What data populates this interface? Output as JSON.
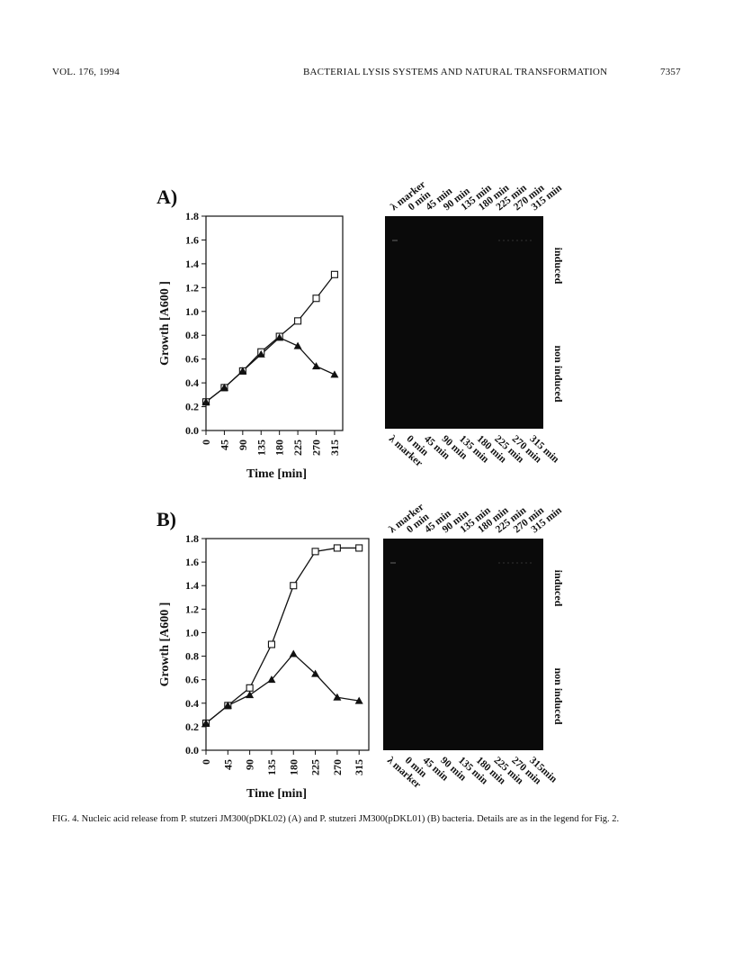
{
  "header": {
    "left": "VOL. 176, 1994",
    "center": "BACTERIAL LYSIS SYSTEMS AND NATURAL TRANSFORMATION",
    "right": "7357"
  },
  "chart_data": [
    {
      "type": "line",
      "panel": "A)",
      "y_label": "Growth [A600 ]",
      "x_label": "Time [min]",
      "x": [
        0,
        45,
        90,
        135,
        180,
        225,
        270,
        315
      ],
      "series": [
        {
          "marker": "square",
          "color": "#111111",
          "values": [
            0.24,
            0.36,
            0.5,
            0.66,
            0.79,
            0.92,
            1.11,
            1.31
          ]
        },
        {
          "marker": "triangle",
          "color": "#111111",
          "values": [
            0.24,
            0.36,
            0.5,
            0.64,
            0.78,
            0.71,
            0.54,
            0.47
          ]
        }
      ],
      "xlim": [
        0,
        335
      ],
      "xticks": [
        0,
        45,
        90,
        135,
        180,
        225,
        270,
        315
      ],
      "ylim": [
        0,
        1.8
      ],
      "yticks": [
        {
          "value": 0,
          "label": "0.0"
        },
        0.2,
        0.4,
        0.6,
        0.8,
        {
          "value": 1,
          "label": "1.0"
        },
        1.2,
        1.4,
        1.6,
        1.8
      ]
    },
    {
      "type": "line",
      "panel": "B)",
      "y_label": "Growth [A600 ]",
      "x_label": "Time [min]",
      "x": [
        0,
        45,
        90,
        135,
        180,
        225,
        270,
        315
      ],
      "series": [
        {
          "marker": "square",
          "color": "#111111",
          "values": [
            0.23,
            0.38,
            0.53,
            0.9,
            1.4,
            1.69,
            1.72,
            1.72
          ]
        },
        {
          "marker": "triangle",
          "color": "#111111",
          "values": [
            0.23,
            0.38,
            0.47,
            0.6,
            0.82,
            0.65,
            0.45,
            0.42
          ]
        }
      ],
      "xlim": [
        0,
        335
      ],
      "xticks": [
        0,
        45,
        90,
        135,
        180,
        225,
        270,
        315
      ],
      "ylim": [
        0,
        1.8
      ],
      "yticks": [
        {
          "value": 0,
          "label": "0.0"
        },
        0.2,
        0.4,
        0.6,
        0.8,
        {
          "value": 1,
          "label": "1.0"
        },
        1.2,
        1.4,
        1.6,
        1.8
      ]
    }
  ],
  "gels": [
    {
      "top_lanes": [
        "λ marker",
        "0 min",
        "45 min",
        "90 min",
        "135 min",
        "180 min",
        "225 min",
        "270 min",
        "315 min"
      ],
      "bottom_lanes": [
        "λ marker",
        "0 min",
        "45 min",
        "90 min",
        "135 min",
        "180 min",
        "225 min",
        "270 min",
        "315 min"
      ],
      "rows": [
        "induced",
        "non induced"
      ]
    },
    {
      "top_lanes": [
        "λ marker",
        "0 min",
        "45 min",
        "90 min",
        "135 min",
        "180 min",
        "225 min",
        "270 min",
        "315 min"
      ],
      "bottom_lanes": [
        "λ marker",
        "0 min",
        "45 min",
        "90 min",
        "135 min",
        "180 min",
        "225 min",
        "270 min",
        "315min"
      ],
      "rows": [
        "induced",
        "non induced"
      ]
    }
  ],
  "caption": "FIG. 4. Nucleic acid release from P. stutzeri JM300(pDKL02) (A) and P. stutzeri JM300(pDKL01) (B) bacteria. Details are as in the legend for Fig. 2."
}
